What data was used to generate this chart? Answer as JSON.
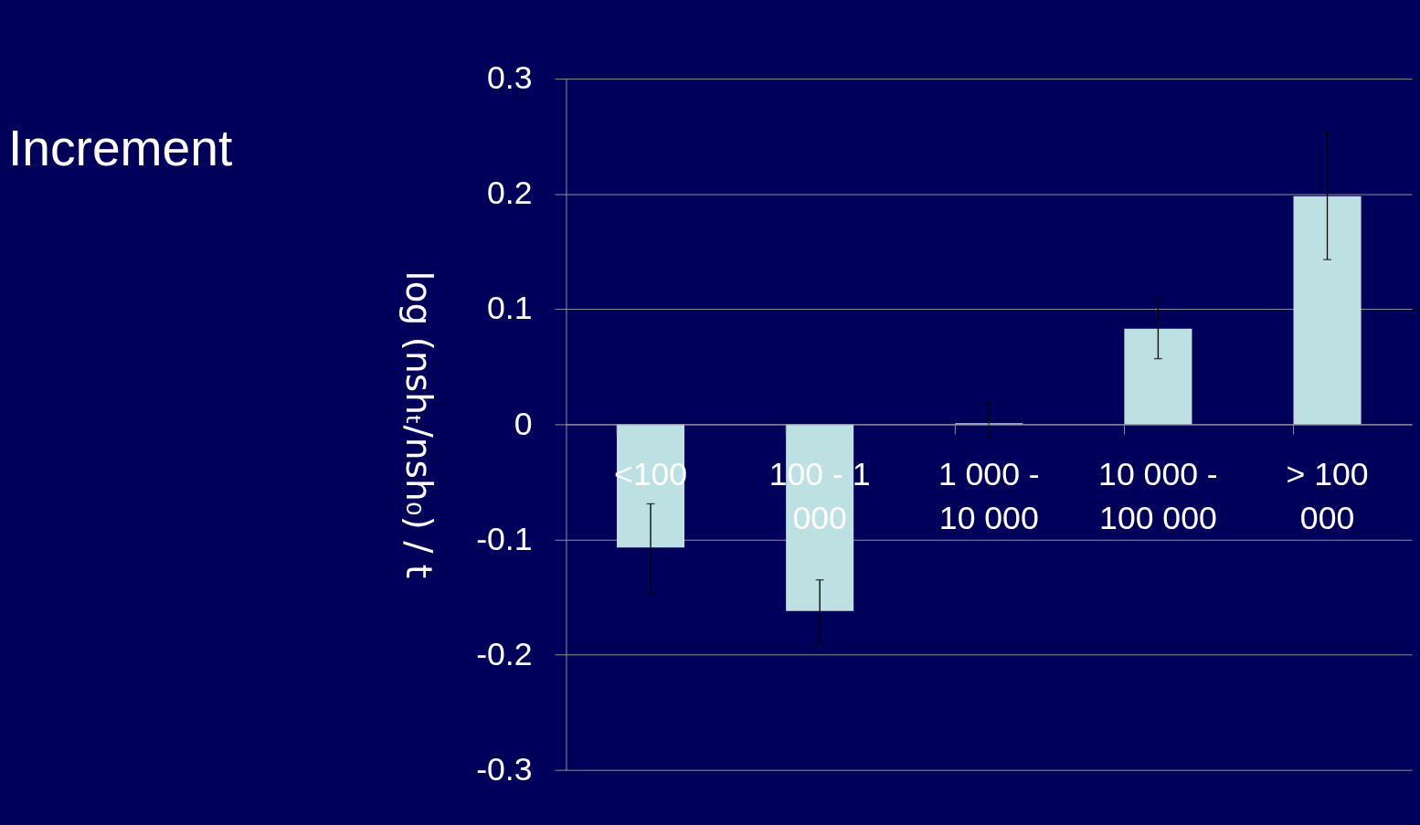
{
  "chart_data": {
    "type": "bar",
    "title": "Increment",
    "ylabel": "log (nshₜ/nsh₀) / t",
    "categories": [
      "<100",
      "100 - 1 000",
      "1 000 - 10 000",
      "10 000 - 100 000",
      "> 100 000"
    ],
    "values": [
      -0.107,
      -0.162,
      0.001,
      0.083,
      0.198
    ],
    "errors": [
      [
        -0.147,
        -0.069
      ],
      [
        -0.19,
        -0.135
      ],
      [
        -0.012,
        0.018
      ],
      [
        0.057,
        0.109
      ],
      [
        0.143,
        0.254
      ]
    ],
    "color": "#bde0e3",
    "ylim": [
      -0.3,
      0.3
    ],
    "yticks": [
      -0.3,
      -0.2,
      -0.1,
      0,
      0.1,
      0.2,
      0.3
    ],
    "grid": "y"
  }
}
